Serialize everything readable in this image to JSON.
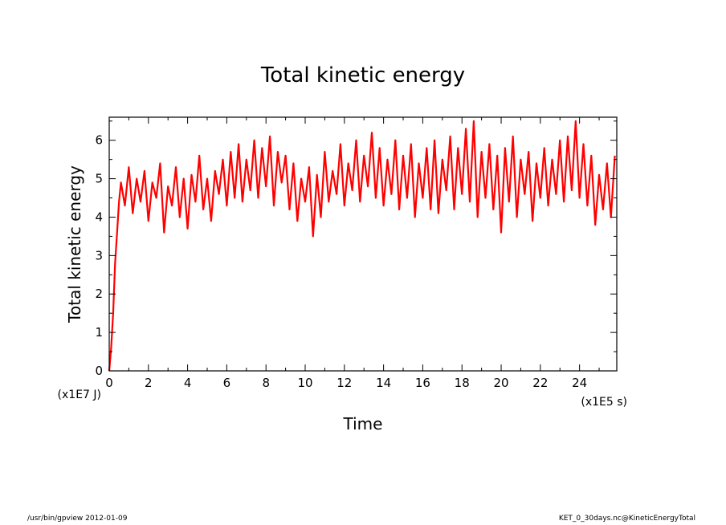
{
  "chart_data": {
    "type": "line",
    "title": "Total kinetic energy",
    "xlabel": "Time",
    "ylabel": "Total kinetic energy",
    "x_unit_label": "(x1E5 s)",
    "y_unit_label": "(x1E7 J)",
    "xlim": [
      0,
      25.9
    ],
    "ylim": [
      0,
      6.6
    ],
    "x_ticks": [
      0,
      2,
      4,
      6,
      8,
      10,
      12,
      14,
      16,
      18,
      20,
      22,
      24
    ],
    "x_tick_labels": [
      "0",
      "2",
      "4",
      "6",
      "8",
      "10",
      "12",
      "14",
      "16",
      "18",
      "20",
      "22",
      "24"
    ],
    "y_ticks": [
      0,
      1,
      2,
      3,
      4,
      5,
      6
    ],
    "y_tick_labels": [
      "0",
      "1",
      "2",
      "3",
      "4",
      "5",
      "6"
    ],
    "grid": false,
    "legend": "none",
    "series": [
      {
        "color": "#ff0000",
        "x": [
          0.0,
          0.1,
          0.2,
          0.3,
          0.4,
          0.5,
          0.6,
          0.8,
          1.0,
          1.2,
          1.4,
          1.6,
          1.8,
          2.0,
          2.2,
          2.4,
          2.6,
          2.8,
          3.0,
          3.2,
          3.4,
          3.6,
          3.8,
          4.0,
          4.2,
          4.4,
          4.6,
          4.8,
          5.0,
          5.2,
          5.4,
          5.6,
          5.8,
          6.0,
          6.2,
          6.4,
          6.6,
          6.8,
          7.0,
          7.2,
          7.4,
          7.6,
          7.8,
          8.0,
          8.2,
          8.4,
          8.6,
          8.8,
          9.0,
          9.2,
          9.4,
          9.6,
          9.8,
          10.0,
          10.2,
          10.4,
          10.6,
          10.8,
          11.0,
          11.2,
          11.4,
          11.6,
          11.8,
          12.0,
          12.2,
          12.4,
          12.6,
          12.8,
          13.0,
          13.2,
          13.4,
          13.6,
          13.8,
          14.0,
          14.2,
          14.4,
          14.6,
          14.8,
          15.0,
          15.2,
          15.4,
          15.6,
          15.8,
          16.0,
          16.2,
          16.4,
          16.6,
          16.8,
          17.0,
          17.2,
          17.4,
          17.6,
          17.8,
          18.0,
          18.2,
          18.4,
          18.6,
          18.8,
          19.0,
          19.2,
          19.4,
          19.6,
          19.8,
          20.0,
          20.2,
          20.4,
          20.6,
          20.8,
          21.0,
          21.2,
          21.4,
          21.6,
          21.8,
          22.0,
          22.2,
          22.4,
          22.6,
          22.8,
          23.0,
          23.2,
          23.4,
          23.6,
          23.8,
          24.0,
          24.2,
          24.4,
          24.6,
          24.8,
          25.0,
          25.2,
          25.4,
          25.6,
          25.8
        ],
        "y": [
          0.0,
          0.6,
          1.5,
          2.8,
          3.6,
          4.4,
          4.9,
          4.3,
          5.3,
          4.1,
          5.0,
          4.4,
          5.2,
          3.9,
          4.9,
          4.5,
          5.4,
          3.6,
          4.8,
          4.3,
          5.3,
          4.0,
          5.0,
          3.7,
          5.1,
          4.4,
          5.6,
          4.2,
          5.0,
          3.9,
          5.2,
          4.6,
          5.5,
          4.3,
          5.7,
          4.5,
          5.9,
          4.4,
          5.5,
          4.7,
          6.0,
          4.5,
          5.8,
          4.8,
          6.1,
          4.3,
          5.7,
          4.9,
          5.6,
          4.2,
          5.4,
          3.9,
          5.0,
          4.4,
          5.3,
          3.5,
          5.1,
          4.0,
          5.7,
          4.4,
          5.2,
          4.6,
          5.9,
          4.3,
          5.4,
          4.7,
          6.0,
          4.4,
          5.6,
          4.8,
          6.2,
          4.5,
          5.8,
          4.3,
          5.5,
          4.6,
          6.0,
          4.2,
          5.6,
          4.5,
          5.9,
          4.0,
          5.4,
          4.5,
          5.8,
          4.2,
          6.0,
          4.1,
          5.5,
          4.7,
          6.1,
          4.2,
          5.8,
          4.6,
          6.3,
          4.4,
          6.5,
          4.0,
          5.7,
          4.5,
          5.9,
          4.2,
          5.6,
          3.6,
          5.8,
          4.4,
          6.1,
          4.0,
          5.5,
          4.6,
          5.7,
          3.9,
          5.4,
          4.5,
          5.8,
          4.3,
          5.5,
          4.6,
          6.0,
          4.4,
          6.1,
          4.7,
          6.5,
          4.5,
          5.9,
          4.3,
          5.6,
          3.8,
          5.1,
          4.2,
          5.4,
          4.0,
          5.6
        ]
      }
    ]
  },
  "footer": {
    "left": "/usr/bin/gpview   2012-01-09",
    "right": "KET_0_30days.nc@KineticEnergyTotal"
  }
}
